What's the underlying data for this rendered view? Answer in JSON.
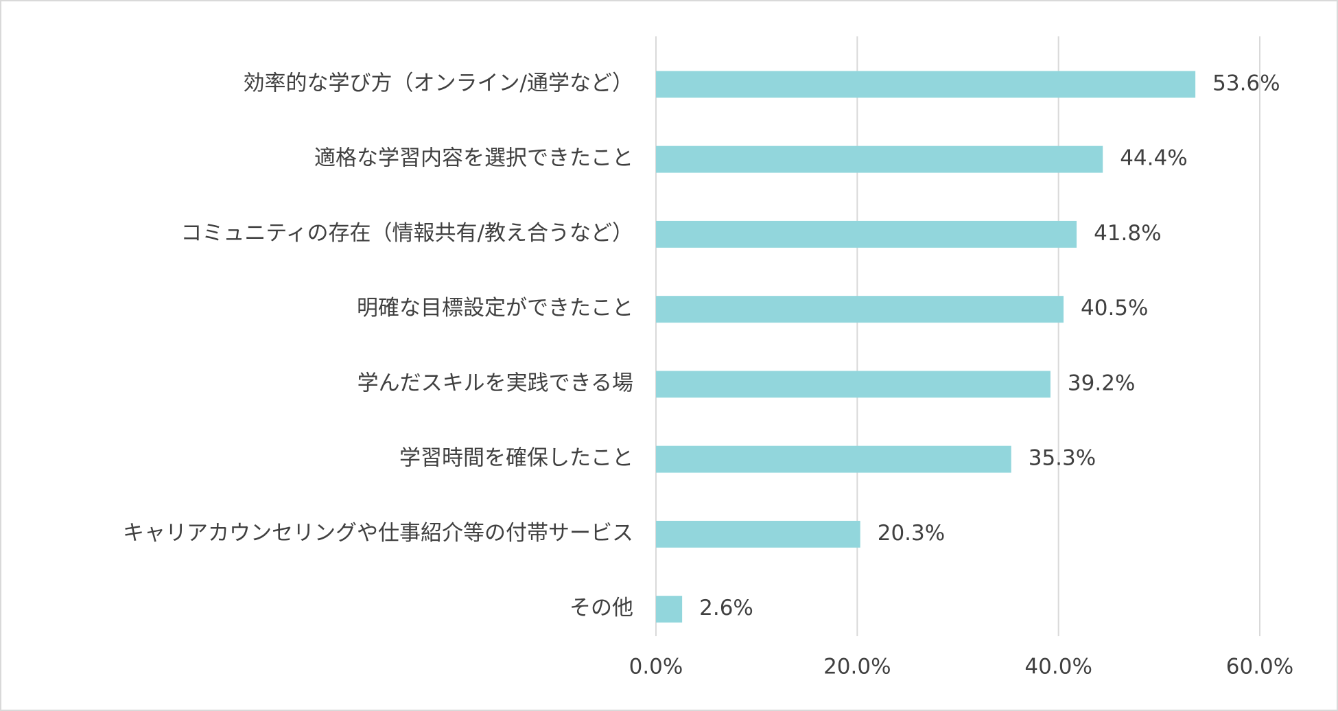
{
  "chart_data": {
    "type": "bar",
    "orientation": "horizontal",
    "categories": [
      "効率的な学び方（オンライン/通学など）",
      "適格な学習内容を選択できたこと",
      "コミュニティの存在（情報共有/教え合うなど）",
      "明確な目標設定ができたこと",
      "学んだスキルを実践できる場",
      "学習時間を確保したこと",
      "キャリアカウンセリングや仕事紹介等の付帯サービス",
      "その他"
    ],
    "values": [
      53.6,
      44.4,
      41.8,
      40.5,
      39.2,
      35.3,
      20.3,
      2.6
    ],
    "value_labels": [
      "53.6%",
      "44.4%",
      "41.8%",
      "40.5%",
      "39.2%",
      "35.3%",
      "20.3%",
      "2.6%"
    ],
    "color": "#92d6dc",
    "xlim": [
      0,
      60
    ],
    "xticks": [
      {
        "value": 0,
        "label": "0.0%"
      },
      {
        "value": 20,
        "label": "20.0%"
      },
      {
        "value": 40,
        "label": "40.0%"
      },
      {
        "value": 60,
        "label": "60.0%"
      }
    ],
    "grid": true
  }
}
